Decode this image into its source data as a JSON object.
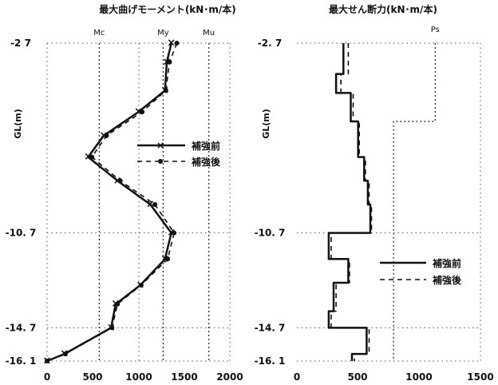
{
  "chart_data": [
    {
      "type": "line",
      "title": "最大曲げモーメント(kN･m/本)",
      "ylabel": "GL(m)",
      "xlabel": "",
      "xlim": [
        0,
        2000
      ],
      "x_ticks": [
        "0",
        "500",
        "1000",
        "1500",
        "2000"
      ],
      "y_ticks": [
        {
          "value": -2.7,
          "label": "-2 7"
        },
        {
          "value": -10.7,
          "label": "-10. 7"
        },
        {
          "value": -14.7,
          "label": "-14. 7"
        },
        {
          "value": -16.1,
          "label": "-16. 1"
        }
      ],
      "reference_lines": [
        {
          "name": "Mc",
          "value": 570
        },
        {
          "name": "My",
          "value": 1270
        },
        {
          "name": "Mu",
          "value": 1770
        }
      ],
      "legend": {
        "position": "right-middle",
        "entries": [
          "補強前",
          "補強後"
        ]
      },
      "series": [
        {
          "name": "補強前",
          "style": "solid-cross",
          "points": [
            [
              1360,
              -2.7
            ],
            [
              1310,
              -3.5
            ],
            [
              1290,
              -4.7
            ],
            [
              1000,
              -5.6
            ],
            [
              620,
              -6.6
            ],
            [
              450,
              -7.5
            ],
            [
              770,
              -8.5
            ],
            [
              1130,
              -9.5
            ],
            [
              1360,
              -10.7
            ],
            [
              1290,
              -11.8
            ],
            [
              1020,
              -12.9
            ],
            [
              750,
              -13.7
            ],
            [
              700,
              -14.7
            ],
            [
              190,
              -15.8
            ],
            [
              0,
              -16.1
            ]
          ]
        },
        {
          "name": "補強後",
          "style": "dashed-dot",
          "points": [
            [
              1420,
              -2.7
            ],
            [
              1340,
              -3.5
            ],
            [
              1300,
              -4.7
            ],
            [
              1040,
              -5.6
            ],
            [
              650,
              -6.6
            ],
            [
              490,
              -7.5
            ],
            [
              800,
              -8.5
            ],
            [
              1180,
              -9.5
            ],
            [
              1390,
              -10.7
            ],
            [
              1320,
              -11.8
            ],
            [
              1030,
              -12.9
            ],
            [
              770,
              -13.7
            ],
            [
              710,
              -14.7
            ],
            [
              200,
              -15.8
            ],
            [
              0,
              -16.1
            ]
          ]
        }
      ]
    },
    {
      "type": "line",
      "title": "最大せん断力(kN･m/本)",
      "ylabel": "GL(m)",
      "xlabel": "",
      "xlim": [
        0,
        1500
      ],
      "x_ticks": [
        "0",
        "500",
        "1000",
        "1500"
      ],
      "y_ticks": [
        {
          "value": -2.7,
          "label": "-2. 7"
        },
        {
          "value": -10.7,
          "label": "-10. 7"
        },
        {
          "value": -14.7,
          "label": "-14. 7"
        },
        {
          "value": -16.1,
          "label": "-16. 1"
        }
      ],
      "reference_lines": [
        {
          "name": "Ps",
          "points": [
            [
              1130,
              -2.7
            ],
            [
              1130,
              -6.0
            ],
            [
              790,
              -6.0
            ],
            [
              790,
              -16.1
            ]
          ]
        }
      ],
      "legend": {
        "position": "right-lower",
        "entries": [
          "補強前",
          "補強後"
        ]
      },
      "series": [
        {
          "name": "補強前",
          "style": "solid-step",
          "points": [
            [
              380,
              -2.7
            ],
            [
              380,
              -4.0
            ],
            [
              320,
              -4.0
            ],
            [
              320,
              -4.8
            ],
            [
              440,
              -4.8
            ],
            [
              440,
              -6.0
            ],
            [
              500,
              -6.0
            ],
            [
              500,
              -7.5
            ],
            [
              550,
              -7.5
            ],
            [
              550,
              -8.5
            ],
            [
              580,
              -8.5
            ],
            [
              580,
              -9.5
            ],
            [
              600,
              -9.5
            ],
            [
              600,
              -10.7
            ],
            [
              260,
              -10.7
            ],
            [
              260,
              -11.8
            ],
            [
              420,
              -11.8
            ],
            [
              420,
              -12.8
            ],
            [
              300,
              -12.8
            ],
            [
              300,
              -14.0
            ],
            [
              260,
              -14.0
            ],
            [
              260,
              -14.7
            ],
            [
              570,
              -14.7
            ],
            [
              570,
              -15.8
            ],
            [
              450,
              -15.8
            ],
            [
              450,
              -16.1
            ]
          ]
        },
        {
          "name": "補強後",
          "style": "dashed-step",
          "points": [
            [
              420,
              -2.7
            ],
            [
              420,
              -4.0
            ],
            [
              360,
              -4.0
            ],
            [
              360,
              -4.8
            ],
            [
              460,
              -4.8
            ],
            [
              460,
              -6.0
            ],
            [
              510,
              -6.0
            ],
            [
              510,
              -7.5
            ],
            [
              560,
              -7.5
            ],
            [
              560,
              -8.5
            ],
            [
              590,
              -8.5
            ],
            [
              590,
              -9.5
            ],
            [
              610,
              -9.5
            ],
            [
              610,
              -10.7
            ],
            [
              280,
              -10.7
            ],
            [
              280,
              -11.8
            ],
            [
              430,
              -11.8
            ],
            [
              430,
              -12.8
            ],
            [
              320,
              -12.8
            ],
            [
              320,
              -14.0
            ],
            [
              280,
              -14.0
            ],
            [
              280,
              -14.7
            ],
            [
              590,
              -14.7
            ],
            [
              590,
              -15.8
            ],
            [
              470,
              -15.8
            ],
            [
              470,
              -16.1
            ]
          ]
        }
      ]
    }
  ]
}
